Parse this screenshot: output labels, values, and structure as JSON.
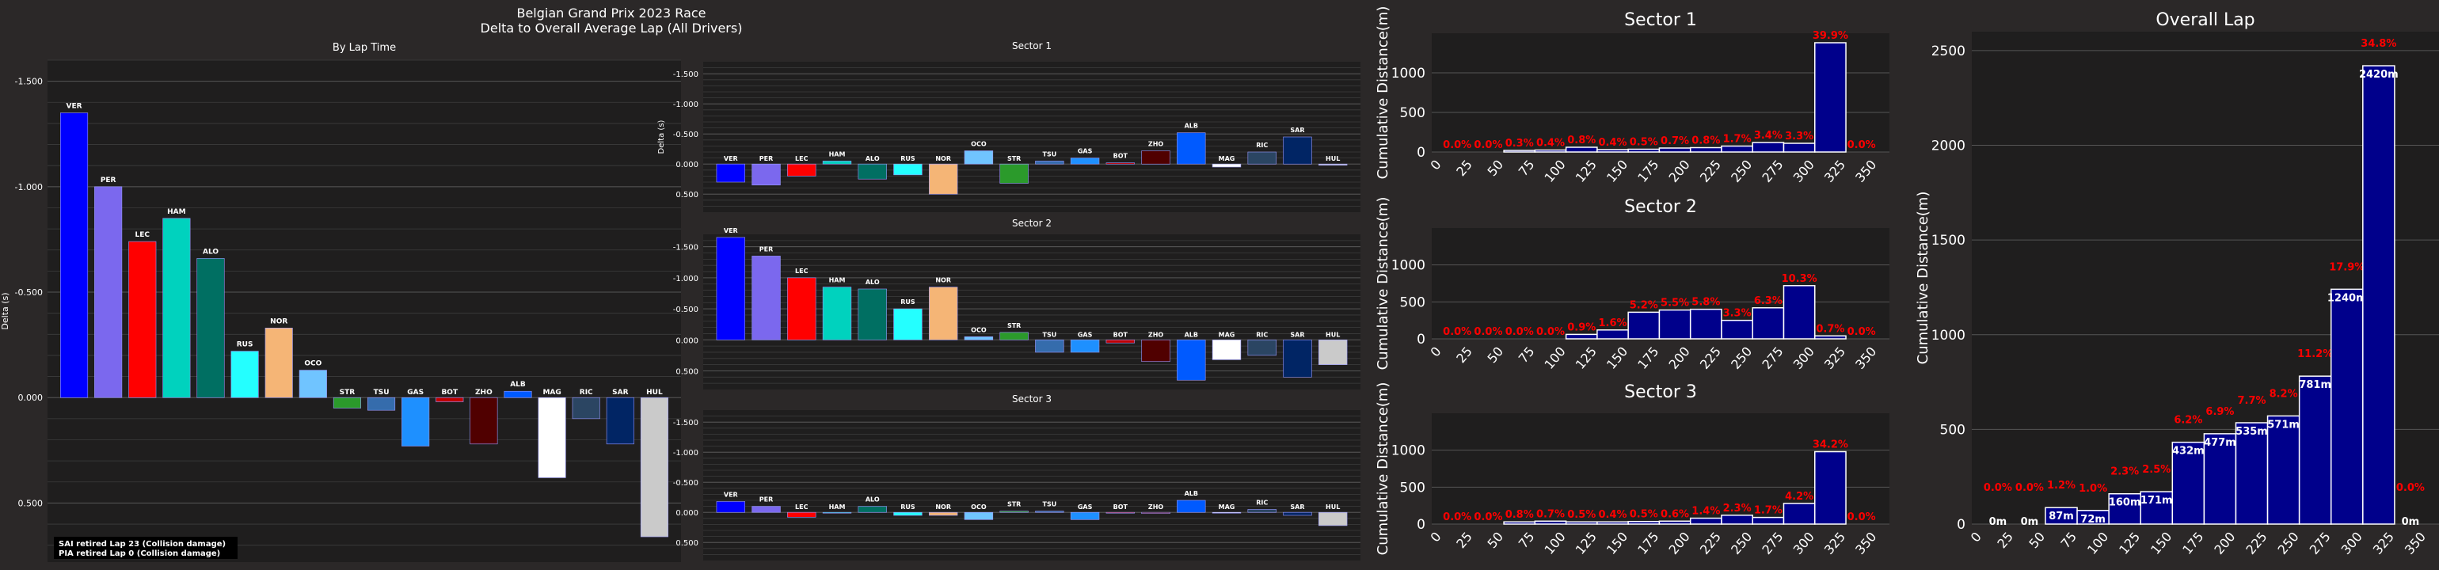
{
  "figure": {
    "suptitle_line1": "Belgian Grand Prix 2023 Race",
    "suptitle_line2": "Delta to Overall Average Lap (All Drivers)"
  },
  "colors": {
    "figure_bg": "#2b2828",
    "axes_bg": "#1f1e1e",
    "grid": "#555555",
    "hist_fill": "#00008b",
    "hist_edge": "#ffffff",
    "pct_label": "#ff0000",
    "drivers": {
      "VER": "#0000ff",
      "PER": "#7b68ee",
      "LEC": "#ff0000",
      "HAM": "#00d2be",
      "ALO": "#006f62",
      "RUS": "#24ffff",
      "NOR": "#f5b576",
      "OCO": "#70c4ff",
      "STR": "#2b9a2b",
      "TSU": "#356cac",
      "GAS": "#1e90ff",
      "BOT": "#c00000",
      "ZHO": "#500000",
      "ALB": "#005aff",
      "MAG": "#ffffff",
      "RIC": "#2b4562",
      "SAR": "#012564",
      "HUL": "#cacaca"
    }
  },
  "chart_data": [
    {
      "id": "by-lap-time",
      "type": "bar",
      "title": "By Lap Time",
      "ylabel": "Delta (s)",
      "categories": [
        "VER",
        "PER",
        "LEC",
        "HAM",
        "ALO",
        "RUS",
        "NOR",
        "OCO",
        "STR",
        "TSU",
        "GAS",
        "BOT",
        "ZHO",
        "ALB",
        "MAG",
        "RIC",
        "SAR",
        "HUL"
      ],
      "values": [
        -1.35,
        -1.0,
        -0.74,
        -0.85,
        -0.66,
        -0.22,
        -0.33,
        -0.13,
        0.05,
        0.06,
        0.23,
        0.02,
        0.22,
        -0.03,
        0.38,
        0.1,
        0.22,
        0.66
      ],
      "yticks": [
        -1.5,
        -1.0,
        -0.5,
        0.0,
        0.5
      ],
      "yticklabels": [
        "-1.500",
        "-1.000",
        "-0.500",
        "0.000",
        "0.500"
      ],
      "ylim": [
        0.78,
        -1.6
      ],
      "annotation_line1": "SAI retired Lap 23 (Collision damage)",
      "annotation_line2": "PIA retired Lap 0 (Collision damage)"
    },
    {
      "id": "sector-1",
      "type": "bar",
      "title": "Sector 1",
      "ylabel": "Delta (s)",
      "categories": [
        "VER",
        "PER",
        "LEC",
        "HAM",
        "ALO",
        "RUS",
        "NOR",
        "OCO",
        "STR",
        "TSU",
        "GAS",
        "BOT",
        "ZHO",
        "ALB",
        "MAG",
        "RIC",
        "SAR",
        "HUL"
      ],
      "values": [
        0.3,
        0.35,
        0.2,
        -0.05,
        0.25,
        0.18,
        0.5,
        -0.22,
        0.32,
        -0.05,
        -0.1,
        -0.02,
        -0.22,
        -0.52,
        0.05,
        -0.2,
        -0.45,
        0.02
      ],
      "yticks": [
        -1.5,
        -1.0,
        -0.5,
        0.0,
        0.5
      ],
      "yticklabels": [
        "-1.500",
        "-1.000",
        "-0.500",
        "0.000",
        "0.500"
      ],
      "ylim": [
        0.8,
        -1.7
      ]
    },
    {
      "id": "sector-2",
      "type": "bar",
      "title": "Sector 2",
      "ylabel": "",
      "categories": [
        "VER",
        "PER",
        "LEC",
        "HAM",
        "ALO",
        "RUS",
        "NOR",
        "OCO",
        "STR",
        "TSU",
        "GAS",
        "BOT",
        "ZHO",
        "ALB",
        "MAG",
        "RIC",
        "SAR",
        "HUL"
      ],
      "values": [
        -1.65,
        -1.35,
        -1.0,
        -0.85,
        -0.82,
        -0.5,
        -0.85,
        -0.05,
        -0.12,
        0.2,
        0.2,
        0.05,
        0.35,
        0.65,
        0.32,
        0.25,
        0.6,
        0.4
      ],
      "yticks": [
        -1.5,
        -1.0,
        -0.5,
        0.0,
        0.5
      ],
      "yticklabels": [
        "-1.500",
        "-1.000",
        "-0.500",
        "0.000",
        "0.500"
      ],
      "ylim": [
        0.8,
        -1.7
      ]
    },
    {
      "id": "sector-3",
      "type": "bar",
      "title": "Sector 3",
      "ylabel": "",
      "categories": [
        "VER",
        "PER",
        "LEC",
        "HAM",
        "ALO",
        "RUS",
        "NOR",
        "OCO",
        "STR",
        "TSU",
        "GAS",
        "BOT",
        "ZHO",
        "ALB",
        "MAG",
        "RIC",
        "SAR",
        "HUL"
      ],
      "values": [
        -0.18,
        -0.1,
        0.08,
        0.0,
        -0.1,
        0.05,
        0.05,
        0.12,
        -0.02,
        -0.02,
        0.12,
        0.0,
        0.02,
        -0.2,
        0.0,
        -0.05,
        0.05,
        0.22
      ],
      "yticks": [
        -1.5,
        -1.0,
        -0.5,
        0.0,
        0.5
      ],
      "yticklabels": [
        "-1.500",
        "-1.000",
        "-0.500",
        "0.000",
        "0.500"
      ],
      "ylim": [
        0.8,
        -1.7
      ]
    },
    {
      "id": "hist-sector-1",
      "type": "bar",
      "title": "Sector 1",
      "ylabel": "Cumulative Distance(m)",
      "bin_width": 25,
      "x": [
        0,
        25,
        50,
        75,
        100,
        125,
        150,
        175,
        200,
        225,
        250,
        275,
        300,
        325
      ],
      "values": [
        0,
        0,
        20,
        25,
        60,
        30,
        35,
        50,
        55,
        75,
        120,
        110,
        1380,
        0
      ],
      "labels": [
        "0.0%",
        "0.0%",
        "0.3%",
        "0.4%",
        "0.8%",
        "0.4%",
        "0.5%",
        "0.7%",
        "0.8%",
        "1.7%",
        "3.4%",
        "3.3%",
        "39.9%",
        "0.0%"
      ],
      "xticks": [
        0,
        25,
        50,
        75,
        100,
        125,
        150,
        175,
        200,
        225,
        250,
        275,
        300,
        325,
        350
      ],
      "yticks": [
        0,
        500,
        1000
      ],
      "ylim": [
        0,
        1500
      ],
      "xlim": [
        -8,
        360
      ]
    },
    {
      "id": "hist-sector-2",
      "type": "bar",
      "title": "Sector 2",
      "ylabel": "Cumulative Distance(m)",
      "bin_width": 25,
      "x": [
        0,
        25,
        50,
        75,
        100,
        125,
        150,
        175,
        200,
        225,
        250,
        275,
        300,
        325
      ],
      "values": [
        0,
        0,
        0,
        0,
        60,
        120,
        360,
        390,
        400,
        250,
        420,
        720,
        40,
        0
      ],
      "labels": [
        "0.0%",
        "0.0%",
        "0.0%",
        "0.0%",
        "0.9%",
        "1.6%",
        "5.2%",
        "5.5%",
        "5.8%",
        "3.3%",
        "6.3%",
        "10.3%",
        "0.7%",
        "0.0%"
      ],
      "xticks": [
        0,
        25,
        50,
        75,
        100,
        125,
        150,
        175,
        200,
        225,
        250,
        275,
        300,
        325,
        350
      ],
      "yticks": [
        0,
        500,
        1000
      ],
      "ylim": [
        0,
        1500
      ],
      "xlim": [
        -8,
        360
      ]
    },
    {
      "id": "hist-sector-3",
      "type": "bar",
      "title": "Sector 3",
      "ylabel": "Cumulative Distance(m)",
      "bin_width": 25,
      "x": [
        0,
        25,
        50,
        75,
        100,
        125,
        150,
        175,
        200,
        225,
        250,
        275,
        300,
        325
      ],
      "values": [
        0,
        0,
        30,
        40,
        30,
        30,
        35,
        40,
        80,
        120,
        90,
        280,
        980,
        0
      ],
      "labels": [
        "0.0%",
        "0.0%",
        "0.8%",
        "0.7%",
        "0.5%",
        "0.4%",
        "0.5%",
        "0.6%",
        "1.4%",
        "2.3%",
        "1.7%",
        "4.2%",
        "34.2%",
        "0.0%"
      ],
      "xticks": [
        0,
        25,
        50,
        75,
        100,
        125,
        150,
        175,
        200,
        225,
        250,
        275,
        300,
        325,
        350
      ],
      "yticks": [
        0,
        500,
        1000
      ],
      "ylim": [
        0,
        1500
      ],
      "xlim": [
        -8,
        360
      ]
    },
    {
      "id": "hist-overall-lap",
      "type": "bar",
      "title": "Overall Lap",
      "ylabel": "Cumulative Distance(m)",
      "bin_width": 25,
      "x": [
        0,
        25,
        50,
        75,
        100,
        125,
        150,
        175,
        200,
        225,
        250,
        275,
        300,
        325
      ],
      "values": [
        0,
        0,
        87,
        72,
        160,
        171,
        432,
        477,
        535,
        571,
        781,
        1240,
        2420,
        0
      ],
      "value_labels": [
        "0m",
        "0m",
        "87m",
        "72m",
        "160m",
        "171m",
        "432m",
        "477m",
        "535m",
        "571m",
        "781m",
        "1240m",
        "2420m",
        "0m"
      ],
      "labels": [
        "0.0%",
        "0.0%",
        "1.2%",
        "1.0%",
        "2.3%",
        "2.5%",
        "6.2%",
        "6.9%",
        "7.7%",
        "8.2%",
        "11.2%",
        "17.9%",
        "34.8%",
        "0.0%"
      ],
      "xticks": [
        0,
        25,
        50,
        75,
        100,
        125,
        150,
        175,
        200,
        225,
        250,
        275,
        300,
        325,
        350
      ],
      "yticks": [
        0,
        500,
        1000,
        1500,
        2000,
        2500
      ],
      "ylim": [
        0,
        2600
      ],
      "xlim": [
        -8,
        360
      ]
    }
  ]
}
